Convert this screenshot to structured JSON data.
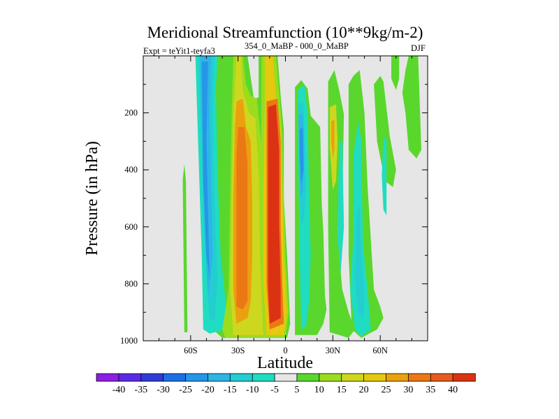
{
  "chart_data": {
    "type": "contour",
    "title": "Meridional Streamfunction (10**9kg/m-2)",
    "subtitle_left": "Expt = teYit1-teyfa3",
    "subtitle_sup": "354_0_MaBP - 000_0_MaBP",
    "subtitle_right": "DJF",
    "xlabel": "Latitude",
    "ylabel": "Pressure (in hPa)",
    "xlim": [
      -90,
      90
    ],
    "ylim": [
      1000,
      0
    ],
    "x_ticks": [
      {
        "value": -60,
        "label": "60S"
      },
      {
        "value": -30,
        "label": "30S"
      },
      {
        "value": 0,
        "label": "0"
      },
      {
        "value": 30,
        "label": "30N"
      },
      {
        "value": 60,
        "label": "60N"
      }
    ],
    "y_ticks": [
      {
        "value": 200,
        "label": "200"
      },
      {
        "value": 400,
        "label": "400"
      },
      {
        "value": 600,
        "label": "600"
      },
      {
        "value": 800,
        "label": "800"
      },
      {
        "value": 1000,
        "label": "1000"
      }
    ],
    "colorbar": {
      "labels": [
        "-40",
        "-35",
        "-30",
        "-25",
        "-20",
        "-15",
        "-10",
        "-5",
        "5",
        "10",
        "15",
        "20",
        "25",
        "30",
        "35",
        "40"
      ],
      "colors": [
        "#8a1ee6",
        "#5a28e6",
        "#2d3cd7",
        "#1f6ee6",
        "#2596e8",
        "#2db5e6",
        "#23cdd2",
        "#20dcc0",
        "#e6e6e6",
        "#5ad72d",
        "#9bdc1e",
        "#cdd71e",
        "#e6c80f",
        "#eba00f",
        "#eb7814",
        "#e65a1e",
        "#dc3214"
      ]
    },
    "regions": [
      {
        "level": 5,
        "poly": [
          [
            -65,
            435
          ],
          [
            -64,
            380
          ],
          [
            -63,
            440
          ],
          [
            -62,
            970
          ],
          [
            -64,
            970
          ]
        ]
      },
      {
        "level": 5,
        "poly": [
          [
            -36,
            0
          ],
          [
            -24,
            0
          ],
          [
            -20,
            150
          ],
          [
            -16,
            145
          ],
          [
            -14,
            330
          ],
          [
            -12,
            700
          ],
          [
            -10,
            860
          ],
          [
            -9,
            990
          ],
          [
            -40,
            990
          ],
          [
            -44,
            970
          ],
          [
            -50,
            930
          ],
          [
            -51,
            600
          ],
          [
            -53,
            0
          ]
        ]
      },
      {
        "level": 5,
        "poly": [
          [
            -17,
            0
          ],
          [
            -5,
            0
          ],
          [
            -3,
            140
          ],
          [
            -1,
            260
          ],
          [
            -1,
            500
          ],
          [
            1,
            700
          ],
          [
            3,
            940
          ],
          [
            1,
            990
          ],
          [
            -14,
            990
          ],
          [
            -15,
            860
          ],
          [
            -17,
            700
          ]
        ]
      },
      {
        "level": 5,
        "poly": [
          [
            6,
            110
          ],
          [
            10,
            85
          ],
          [
            14,
            115
          ],
          [
            16,
            210
          ],
          [
            22,
            250
          ],
          [
            23,
            520
          ],
          [
            24,
            620
          ],
          [
            25,
            840
          ],
          [
            26,
            890
          ],
          [
            24,
            940
          ],
          [
            20,
            980
          ],
          [
            6,
            980
          ]
        ]
      },
      {
        "level": 5,
        "poly": [
          [
            27,
            90
          ],
          [
            31,
            50
          ],
          [
            34,
            120
          ],
          [
            37,
            205
          ],
          [
            36,
            500
          ],
          [
            34,
            700
          ],
          [
            36,
            820
          ],
          [
            40,
            900
          ],
          [
            44,
            960
          ],
          [
            40,
            990
          ],
          [
            28,
            970
          ],
          [
            27,
            600
          ]
        ]
      },
      {
        "level": 5,
        "poly": [
          [
            40,
            100
          ],
          [
            43,
            70
          ],
          [
            47,
            50
          ],
          [
            50,
            200
          ],
          [
            52,
            460
          ],
          [
            54,
            640
          ],
          [
            56,
            820
          ],
          [
            60,
            880
          ],
          [
            62,
            920
          ],
          [
            58,
            960
          ],
          [
            48,
            990
          ],
          [
            42,
            960
          ],
          [
            40,
            700
          ]
        ]
      },
      {
        "level": 5,
        "poly": [
          [
            56,
            100
          ],
          [
            60,
            70
          ],
          [
            62,
            90
          ],
          [
            66,
            280
          ],
          [
            70,
            400
          ],
          [
            68,
            460
          ],
          [
            63,
            440
          ],
          [
            58,
            300
          ]
        ]
      },
      {
        "level": 5,
        "poly": [
          [
            84,
            0
          ],
          [
            86,
            330
          ],
          [
            83,
            360
          ],
          [
            78,
            330
          ],
          [
            76,
            200
          ],
          [
            74,
            130
          ],
          [
            76,
            50
          ],
          [
            78,
            0
          ]
        ]
      },
      {
        "level": 5,
        "poly": [
          [
            67,
            0
          ],
          [
            72,
            0
          ],
          [
            72,
            80
          ],
          [
            70,
            120
          ],
          [
            67,
            80
          ]
        ]
      },
      {
        "level": 5,
        "poly": [
          [
            17,
            880
          ],
          [
            20,
            875
          ],
          [
            20,
            900
          ],
          [
            17,
            905
          ]
        ]
      },
      {
        "level": -5,
        "poly": [
          [
            -57,
            0
          ],
          [
            -43,
            0
          ],
          [
            -44,
            120
          ],
          [
            -43,
            400
          ],
          [
            -41,
            700
          ],
          [
            -38,
            860
          ],
          [
            -38,
            960
          ],
          [
            -48,
            975
          ],
          [
            -52,
            960
          ],
          [
            -53,
            700
          ]
        ]
      },
      {
        "level": -10,
        "poly": [
          [
            -55,
            0
          ],
          [
            -45,
            0
          ],
          [
            -46,
            200
          ],
          [
            -45,
            500
          ],
          [
            -43,
            800
          ],
          [
            -45,
            930
          ],
          [
            -48,
            920
          ],
          [
            -51,
            700
          ],
          [
            -53,
            400
          ]
        ]
      },
      {
        "level": -15,
        "poly": [
          [
            -54,
            0
          ],
          [
            -47,
            0
          ],
          [
            -48,
            200
          ],
          [
            -47,
            450
          ],
          [
            -46,
            700
          ],
          [
            -49,
            850
          ],
          [
            -51,
            600
          ]
        ]
      },
      {
        "level": -20,
        "poly": [
          [
            -53,
            20
          ],
          [
            -49,
            20
          ],
          [
            -50,
            300
          ],
          [
            -49,
            550
          ],
          [
            -48,
            780
          ],
          [
            -50,
            700
          ],
          [
            -52,
            450
          ]
        ]
      },
      {
        "level": -5,
        "poly": [
          [
            8,
            120
          ],
          [
            12,
            100
          ],
          [
            14,
            200
          ],
          [
            15,
            500
          ],
          [
            16,
            700
          ],
          [
            15,
            860
          ],
          [
            13,
            950
          ],
          [
            10,
            960
          ],
          [
            9,
            700
          ],
          [
            8,
            350
          ]
        ]
      },
      {
        "level": -10,
        "poly": [
          [
            8,
            170
          ],
          [
            11,
            160
          ],
          [
            12,
            250
          ],
          [
            13,
            450
          ],
          [
            12,
            560
          ],
          [
            10,
            600
          ],
          [
            9,
            450
          ]
        ]
      },
      {
        "level": -15,
        "poly": [
          [
            8.5,
            210
          ],
          [
            11,
            200
          ],
          [
            12,
            330
          ],
          [
            11,
            480
          ],
          [
            9.5,
            500
          ],
          [
            8.5,
            350
          ]
        ]
      },
      {
        "level": -20,
        "poly": [
          [
            9,
            260
          ],
          [
            11,
            250
          ],
          [
            11.5,
            400
          ],
          [
            10,
            450
          ],
          [
            9,
            340
          ]
        ]
      },
      {
        "level": -5,
        "poly": [
          [
            43,
            350
          ],
          [
            46,
            230
          ],
          [
            48,
            300
          ],
          [
            49,
            650
          ],
          [
            52,
            820
          ],
          [
            54,
            960
          ],
          [
            48,
            985
          ],
          [
            44,
            960
          ],
          [
            41,
            820
          ],
          [
            43,
            640
          ]
        ]
      },
      {
        "level": -10,
        "poly": [
          [
            45,
            560
          ],
          [
            47,
            520
          ],
          [
            48,
            700
          ],
          [
            50,
            850
          ],
          [
            49,
            920
          ],
          [
            46,
            900
          ],
          [
            44,
            780
          ]
        ]
      },
      {
        "level": -5,
        "poly": [
          [
            34,
            300
          ],
          [
            36,
            300
          ],
          [
            37,
            600
          ],
          [
            35,
            760
          ],
          [
            33,
            640
          ]
        ]
      },
      {
        "level": -5,
        "poly": [
          [
            62,
            280
          ],
          [
            64,
            300
          ],
          [
            64,
            560
          ],
          [
            62,
            540
          ],
          [
            61,
            420
          ]
        ]
      },
      {
        "level": 10,
        "poly": [
          [
            -33,
            0
          ],
          [
            -27,
            0
          ],
          [
            -25,
            100
          ],
          [
            -22,
            140
          ],
          [
            -18,
            150
          ],
          [
            -15,
            330
          ],
          [
            -14,
            700
          ],
          [
            -12,
            860
          ],
          [
            -11,
            990
          ],
          [
            -38,
            990
          ],
          [
            -40,
            960
          ],
          [
            -36,
            820
          ],
          [
            -35,
            500
          ],
          [
            -34,
            200
          ]
        ]
      },
      {
        "level": 15,
        "poly": [
          [
            -31,
            0
          ],
          [
            -28,
            0
          ],
          [
            -27,
            120
          ],
          [
            -23,
            200
          ],
          [
            -19,
            220
          ],
          [
            -17,
            400
          ],
          [
            -16,
            700
          ],
          [
            -15,
            860
          ],
          [
            -14,
            980
          ],
          [
            -33,
            980
          ],
          [
            -35,
            820
          ],
          [
            -34,
            500
          ],
          [
            -33,
            220
          ]
        ]
      },
      {
        "level": 25,
        "poly": [
          [
            -31,
            160
          ],
          [
            -27,
            150
          ],
          [
            -25,
            250
          ],
          [
            -22,
            300
          ],
          [
            -21,
            500
          ],
          [
            -21,
            700
          ],
          [
            -22,
            860
          ],
          [
            -24,
            920
          ],
          [
            -31,
            940
          ],
          [
            -33,
            820
          ],
          [
            -33,
            500
          ],
          [
            -32,
            250
          ]
        ]
      },
      {
        "level": 30,
        "poly": [
          [
            -30,
            250
          ],
          [
            -26,
            250
          ],
          [
            -24,
            380
          ],
          [
            -24,
            700
          ],
          [
            -24,
            860
          ],
          [
            -27,
            890
          ],
          [
            -31,
            880
          ],
          [
            -31,
            600
          ],
          [
            -31,
            350
          ]
        ]
      },
      {
        "level": 10,
        "poly": [
          [
            -15,
            0
          ],
          [
            -6,
            0
          ],
          [
            -4,
            130
          ],
          [
            -2,
            270
          ],
          [
            -1,
            500
          ],
          [
            0,
            700
          ],
          [
            2,
            900
          ],
          [
            0,
            990
          ],
          [
            -13,
            990
          ],
          [
            -14,
            860
          ],
          [
            -16,
            700
          ]
        ]
      },
      {
        "level": 20,
        "poly": [
          [
            -13,
            0
          ],
          [
            -8,
            0
          ],
          [
            -6,
            140
          ],
          [
            -3,
            260
          ],
          [
            -2,
            500
          ],
          [
            -1,
            700
          ],
          [
            1,
            900
          ],
          [
            -1,
            980
          ],
          [
            -12,
            980
          ],
          [
            -14,
            800
          ],
          [
            -14,
            500
          ],
          [
            -13,
            200
          ]
        ]
      },
      {
        "level": 30,
        "poly": [
          [
            -12,
            160
          ],
          [
            -5,
            150
          ],
          [
            -3,
            300
          ],
          [
            -3,
            600
          ],
          [
            -2,
            800
          ],
          [
            -1,
            940
          ],
          [
            -10,
            960
          ],
          [
            -12,
            800
          ],
          [
            -12,
            500
          ]
        ]
      },
      {
        "level": 40,
        "poly": [
          [
            -11,
            180
          ],
          [
            -6,
            170
          ],
          [
            -4,
            330
          ],
          [
            -4,
            600
          ],
          [
            -3,
            820
          ],
          [
            -3,
            920
          ],
          [
            -10,
            940
          ],
          [
            -11,
            800
          ],
          [
            -11,
            500
          ]
        ]
      },
      {
        "level": 15,
        "poly": [
          [
            28,
            180
          ],
          [
            32,
            170
          ],
          [
            33,
            300
          ],
          [
            32,
            440
          ],
          [
            30,
            470
          ],
          [
            28,
            320
          ]
        ]
      },
      {
        "level": 25,
        "poly": [
          [
            29,
            230
          ],
          [
            31,
            225
          ],
          [
            31,
            330
          ],
          [
            30,
            360
          ],
          [
            29,
            300
          ]
        ]
      }
    ]
  }
}
